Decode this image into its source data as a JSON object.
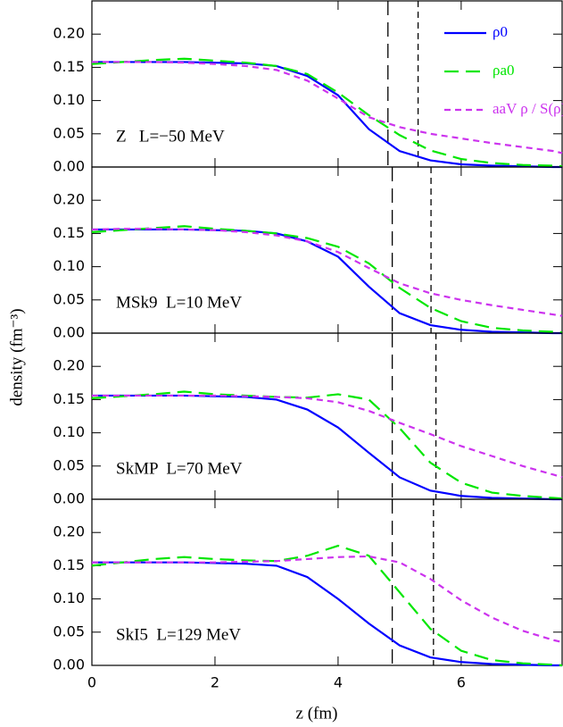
{
  "axis_labels": {
    "y": "density (fm⁻³)",
    "x": "z (fm)"
  },
  "chart_data": [
    {
      "type": "line",
      "annotation": "Z   L=−50 MeV",
      "legend": "upper right",
      "x": [
        0,
        0.5,
        1,
        1.5,
        2,
        2.5,
        3,
        3.5,
        4,
        4.5,
        5,
        5.5,
        6,
        6.5,
        7,
        7.5,
        7.64
      ],
      "xlim": [
        0,
        7.64
      ],
      "xticks": [
        0,
        2,
        4,
        6
      ],
      "ylim": [
        0,
        0.25
      ],
      "yticks": [
        {
          "value": 0,
          "label": "0.00"
        },
        0.05,
        {
          "value": 0.1,
          "label": "0.10"
        },
        0.15,
        {
          "value": 0.2,
          "label": "0.20"
        }
      ],
      "vlines": [
        {
          "x": 4.81,
          "dash": "long"
        },
        {
          "x": 5.3,
          "dash": "short"
        }
      ],
      "series": [
        {
          "name": "ρ0",
          "color": "#0000ff",
          "dash": "solid",
          "values": [
            0.158,
            0.158,
            0.158,
            0.158,
            0.157,
            0.156,
            0.152,
            0.137,
            0.108,
            0.057,
            0.024,
            0.01,
            0.004,
            0.002,
            0.001,
            0.0,
            0.0
          ]
        },
        {
          "name": "ρa0",
          "color": "#00e600",
          "dash": "long",
          "values": [
            0.155,
            0.158,
            0.161,
            0.163,
            0.16,
            0.157,
            0.152,
            0.14,
            0.112,
            0.078,
            0.048,
            0.025,
            0.012,
            0.006,
            0.003,
            0.002,
            0.001
          ]
        },
        {
          "name": "aaV ρ / S(ρ)",
          "color": "#cc33ee",
          "dash": "short",
          "values": [
            0.158,
            0.158,
            0.158,
            0.157,
            0.155,
            0.152,
            0.146,
            0.13,
            0.103,
            0.075,
            0.06,
            0.05,
            0.043,
            0.036,
            0.03,
            0.024,
            0.021
          ]
        }
      ]
    },
    {
      "type": "line",
      "annotation": "MSk9  L=10 MeV",
      "x": [
        0,
        0.5,
        1,
        1.5,
        2,
        2.5,
        3,
        3.5,
        4,
        4.5,
        5,
        5.5,
        6,
        6.5,
        7,
        7.5,
        7.64
      ],
      "xlim": [
        0,
        7.64
      ],
      "xticks": [
        0,
        2,
        4,
        6
      ],
      "ylim": [
        0,
        0.25
      ],
      "yticks": [
        {
          "value": 0,
          "label": "0.00"
        },
        0.05,
        {
          "value": 0.1,
          "label": "0.10"
        },
        0.15,
        {
          "value": 0.2,
          "label": "0.20"
        }
      ],
      "vlines": [
        {
          "x": 4.88,
          "dash": "long"
        },
        {
          "x": 5.51,
          "dash": "short"
        }
      ],
      "series": [
        {
          "name": "ρ0",
          "color": "#0000ff",
          "dash": "solid",
          "values": [
            0.156,
            0.156,
            0.156,
            0.156,
            0.155,
            0.154,
            0.15,
            0.138,
            0.115,
            0.07,
            0.03,
            0.012,
            0.005,
            0.002,
            0.001,
            0.0,
            0.0
          ]
        },
        {
          "name": "ρa0",
          "color": "#00e600",
          "dash": "long",
          "values": [
            0.152,
            0.155,
            0.158,
            0.161,
            0.157,
            0.154,
            0.15,
            0.143,
            0.13,
            0.105,
            0.068,
            0.038,
            0.018,
            0.008,
            0.004,
            0.002,
            0.001
          ]
        },
        {
          "name": "aaV ρ / S(ρ)",
          "color": "#cc33ee",
          "dash": "short",
          "values": [
            0.156,
            0.157,
            0.157,
            0.156,
            0.155,
            0.152,
            0.147,
            0.138,
            0.122,
            0.098,
            0.075,
            0.06,
            0.05,
            0.042,
            0.035,
            0.028,
            0.026
          ]
        }
      ]
    },
    {
      "type": "line",
      "annotation": "SkMP  L=70 MeV",
      "x": [
        0,
        0.5,
        1,
        1.5,
        2,
        2.5,
        3,
        3.5,
        4,
        4.5,
        5,
        5.5,
        6,
        6.5,
        7,
        7.5,
        7.64
      ],
      "xlim": [
        0,
        7.64
      ],
      "xticks": [
        0,
        2,
        4,
        6
      ],
      "ylim": [
        0,
        0.25
      ],
      "yticks": [
        {
          "value": 0,
          "label": "0.00"
        },
        0.05,
        {
          "value": 0.1,
          "label": "0.10"
        },
        0.15,
        {
          "value": 0.2,
          "label": "0.20"
        }
      ],
      "vlines": [
        {
          "x": 4.88,
          "dash": "long"
        },
        {
          "x": 5.59,
          "dash": "short"
        }
      ],
      "series": [
        {
          "name": "ρ0",
          "color": "#0000ff",
          "dash": "solid",
          "values": [
            0.156,
            0.156,
            0.156,
            0.156,
            0.155,
            0.154,
            0.15,
            0.135,
            0.108,
            0.07,
            0.033,
            0.013,
            0.005,
            0.002,
            0.001,
            0.0,
            0.0
          ]
        },
        {
          "name": "ρa0",
          "color": "#00e600",
          "dash": "long",
          "values": [
            0.152,
            0.155,
            0.158,
            0.162,
            0.158,
            0.156,
            0.154,
            0.153,
            0.158,
            0.15,
            0.107,
            0.055,
            0.025,
            0.01,
            0.005,
            0.002,
            0.001
          ]
        },
        {
          "name": "aaV ρ / S(ρ)",
          "color": "#cc33ee",
          "dash": "short",
          "values": [
            0.156,
            0.156,
            0.156,
            0.156,
            0.156,
            0.155,
            0.154,
            0.152,
            0.146,
            0.133,
            0.115,
            0.098,
            0.08,
            0.065,
            0.05,
            0.037,
            0.033
          ]
        }
      ]
    },
    {
      "type": "line",
      "annotation": "SkI5  L=129 MeV",
      "x": [
        0,
        0.5,
        1,
        1.5,
        2,
        2.5,
        3,
        3.5,
        4,
        4.5,
        5,
        5.5,
        6,
        6.5,
        7,
        7.5,
        7.64
      ],
      "xlim": [
        0,
        7.64
      ],
      "xticks": [
        0,
        2,
        4,
        6
      ],
      "ylim": [
        0,
        0.25
      ],
      "yticks": [
        {
          "value": 0,
          "label": "0.00"
        },
        0.05,
        {
          "value": 0.1,
          "label": "0.10"
        },
        0.15,
        {
          "value": 0.2,
          "label": "0.20"
        }
      ],
      "vlines": [
        {
          "x": 4.88,
          "dash": "long"
        },
        {
          "x": 5.55,
          "dash": "short"
        }
      ],
      "series": [
        {
          "name": "ρ0",
          "color": "#0000ff",
          "dash": "solid",
          "values": [
            0.155,
            0.155,
            0.155,
            0.155,
            0.154,
            0.153,
            0.15,
            0.133,
            0.1,
            0.063,
            0.03,
            0.012,
            0.005,
            0.002,
            0.001,
            0.0,
            0.0
          ]
        },
        {
          "name": "ρa0",
          "color": "#00e600",
          "dash": "long",
          "values": [
            0.15,
            0.155,
            0.16,
            0.163,
            0.16,
            0.158,
            0.157,
            0.165,
            0.18,
            0.165,
            0.11,
            0.055,
            0.022,
            0.008,
            0.003,
            0.001,
            0.0
          ]
        },
        {
          "name": "aaV ρ / S(ρ)",
          "color": "#cc33ee",
          "dash": "short",
          "values": [
            0.155,
            0.155,
            0.155,
            0.155,
            0.155,
            0.156,
            0.157,
            0.16,
            0.163,
            0.164,
            0.155,
            0.13,
            0.098,
            0.072,
            0.052,
            0.038,
            0.035
          ]
        }
      ]
    }
  ]
}
